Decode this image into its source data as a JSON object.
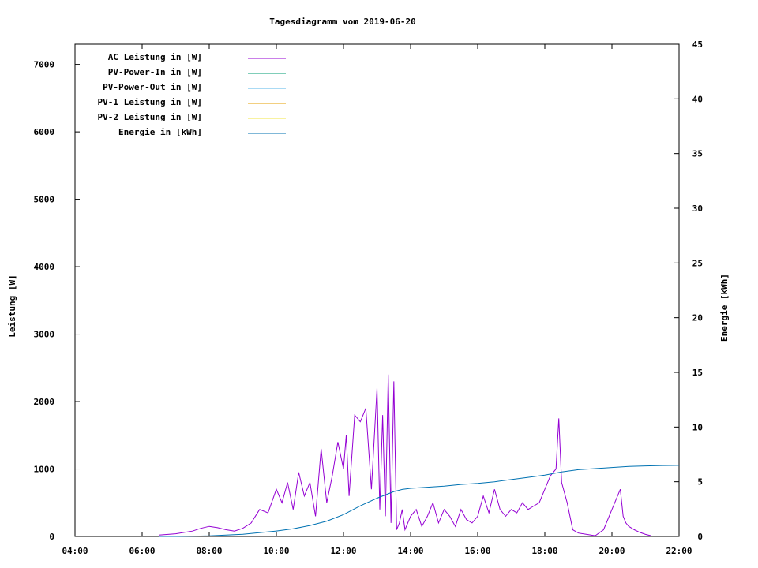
{
  "chart_data": {
    "type": "line",
    "title": "Tagesdiagramm vom 2019-06-20",
    "ylabel_left": "Leistung [W]",
    "ylabel_right": "Energie [kWh]",
    "x_ticks": [
      "04:00",
      "06:00",
      "08:00",
      "10:00",
      "12:00",
      "14:00",
      "16:00",
      "18:00",
      "20:00",
      "22:00"
    ],
    "xlim": [
      "04:00",
      "22:00"
    ],
    "ylim_left": [
      0,
      7300
    ],
    "yticks_left": [
      0,
      1000,
      2000,
      3000,
      4000,
      5000,
      6000,
      7000
    ],
    "ylim_right": [
      0,
      45
    ],
    "yticks_right": [
      0,
      5,
      10,
      15,
      20,
      25,
      30,
      35,
      40,
      45
    ],
    "grid": false,
    "legend_position": "top-left",
    "series": [
      {
        "name": "AC Leistung in [W]",
        "axis": "left",
        "color": "#9400d3",
        "x": [
          "06:30",
          "07:00",
          "07:30",
          "07:45",
          "08:00",
          "08:15",
          "08:30",
          "08:45",
          "09:00",
          "09:15",
          "09:30",
          "09:45",
          "10:00",
          "10:10",
          "10:20",
          "10:30",
          "10:40",
          "10:50",
          "11:00",
          "11:10",
          "11:20",
          "11:30",
          "11:40",
          "11:50",
          "12:00",
          "12:05",
          "12:10",
          "12:20",
          "12:30",
          "12:40",
          "12:50",
          "13:00",
          "13:05",
          "13:10",
          "13:15",
          "13:20",
          "13:25",
          "13:30",
          "13:35",
          "13:40",
          "13:45",
          "13:50",
          "14:00",
          "14:10",
          "14:20",
          "14:30",
          "14:40",
          "14:50",
          "15:00",
          "15:10",
          "15:20",
          "15:30",
          "15:40",
          "15:50",
          "16:00",
          "16:10",
          "16:20",
          "16:30",
          "16:40",
          "16:50",
          "17:00",
          "17:10",
          "17:20",
          "17:30",
          "17:40",
          "17:50",
          "18:00",
          "18:10",
          "18:20",
          "18:25",
          "18:30",
          "18:40",
          "18:50",
          "19:00",
          "19:15",
          "19:30",
          "19:45",
          "20:00",
          "20:10",
          "20:15",
          "20:20",
          "20:25",
          "20:30",
          "20:40",
          "20:50",
          "21:00",
          "21:10"
        ],
        "values": [
          20,
          40,
          80,
          120,
          150,
          130,
          100,
          80,
          120,
          200,
          400,
          350,
          700,
          500,
          800,
          400,
          950,
          600,
          800,
          300,
          1300,
          500,
          900,
          1400,
          1000,
          1500,
          600,
          1800,
          1700,
          1900,
          700,
          2200,
          400,
          1800,
          300,
          2400,
          200,
          2300,
          100,
          200,
          400,
          100,
          300,
          400,
          150,
          300,
          500,
          200,
          400,
          300,
          150,
          400,
          250,
          200,
          300,
          600,
          350,
          700,
          400,
          300,
          400,
          350,
          500,
          400,
          450,
          500,
          700,
          900,
          1000,
          1750,
          800,
          500,
          100,
          50,
          30,
          10,
          100,
          400,
          600,
          700,
          300,
          200,
          150,
          100,
          60,
          30,
          10
        ]
      },
      {
        "name": "PV-Power-In in [W]",
        "axis": "left",
        "color": "#009e73",
        "x": [],
        "values": []
      },
      {
        "name": "PV-Power-Out in [W]",
        "axis": "left",
        "color": "#56b4e9",
        "x": [],
        "values": []
      },
      {
        "name": "PV-1 Leistung in [W]",
        "axis": "left",
        "color": "#e69f00",
        "x": [],
        "values": []
      },
      {
        "name": "PV-2 Leistung in [W]",
        "axis": "left",
        "color": "#f0e442",
        "x": [],
        "values": []
      },
      {
        "name": "Energie in [kWh]",
        "axis": "right",
        "color": "#0072b2",
        "x": [
          "06:30",
          "07:00",
          "08:00",
          "09:00",
          "10:00",
          "10:30",
          "11:00",
          "11:30",
          "12:00",
          "12:30",
          "13:00",
          "13:30",
          "13:45",
          "14:00",
          "14:30",
          "15:00",
          "15:30",
          "16:00",
          "16:30",
          "17:00",
          "17:30",
          "18:00",
          "18:30",
          "19:00",
          "19:30",
          "20:00",
          "20:30",
          "21:00",
          "21:30",
          "22:00"
        ],
        "values": [
          0,
          0,
          0.05,
          0.2,
          0.5,
          0.7,
          1.0,
          1.4,
          2.0,
          2.8,
          3.5,
          4.1,
          4.3,
          4.4,
          4.5,
          4.6,
          4.75,
          4.85,
          5.0,
          5.2,
          5.4,
          5.6,
          5.9,
          6.1,
          6.2,
          6.3,
          6.4,
          6.45,
          6.48,
          6.5
        ]
      }
    ]
  }
}
